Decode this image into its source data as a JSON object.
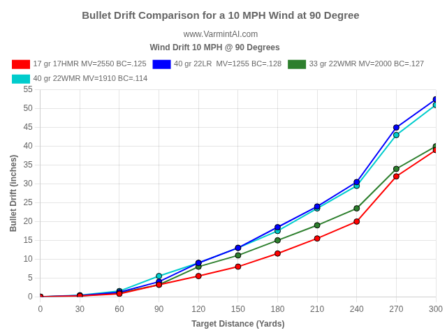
{
  "chart_data": {
    "type": "line",
    "title": "Bullet Drift Comparison for a 10 MPH Wind at 90 Degree",
    "subtitle": "www.VarmintAI.com",
    "x_label": "Target Distance (Yards)",
    "y_label": "Bullet Drift (inches)",
    "x": [
      0,
      30,
      60,
      90,
      120,
      150,
      180,
      210,
      240,
      270,
      300
    ],
    "series": [
      {
        "name": "17 gr 17HMR MV=2550 BC=.125",
        "color": "#ff0000",
        "values": [
          0,
          0.2,
          0.8,
          3.2,
          5.5,
          8.0,
          11.5,
          15.5,
          20.0,
          32.0,
          39.0
        ]
      },
      {
        "name": "40 gr 22LR  MV=1255 BC=.128",
        "color": "#0000ff",
        "values": [
          0,
          0.3,
          1.2,
          4.0,
          9.0,
          13.0,
          18.5,
          24.0,
          30.5,
          45.0,
          52.5
        ]
      },
      {
        "name": "33 gr 22WMR MV=2000 BC=.127",
        "color": "#2d7f2d",
        "values": [
          0,
          0.2,
          1.0,
          3.2,
          8.0,
          11.0,
          15.0,
          19.0,
          23.5,
          34.0,
          40.0
        ]
      },
      {
        "name": "40 gr 22WMR MV=1910 BC=.114",
        "color": "#00cccc",
        "values": [
          0,
          0.4,
          1.5,
          5.5,
          9.0,
          13.0,
          17.5,
          23.5,
          29.5,
          43.0,
          51.0
        ]
      }
    ],
    "xlim": [
      0,
      300
    ],
    "ylim": [
      0,
      55
    ],
    "xticks": [
      0,
      30,
      60,
      90,
      120,
      150,
      180,
      210,
      240,
      270,
      300
    ],
    "yticks": [
      0,
      5,
      10,
      15,
      20,
      25,
      30,
      35,
      40,
      45,
      50,
      55
    ],
    "grid": true,
    "legend": "upper left",
    "legend_title": "Wind Drift 10 MPH @ 90 Degrees",
    "marker": "circle",
    "line_style": "solid"
  }
}
